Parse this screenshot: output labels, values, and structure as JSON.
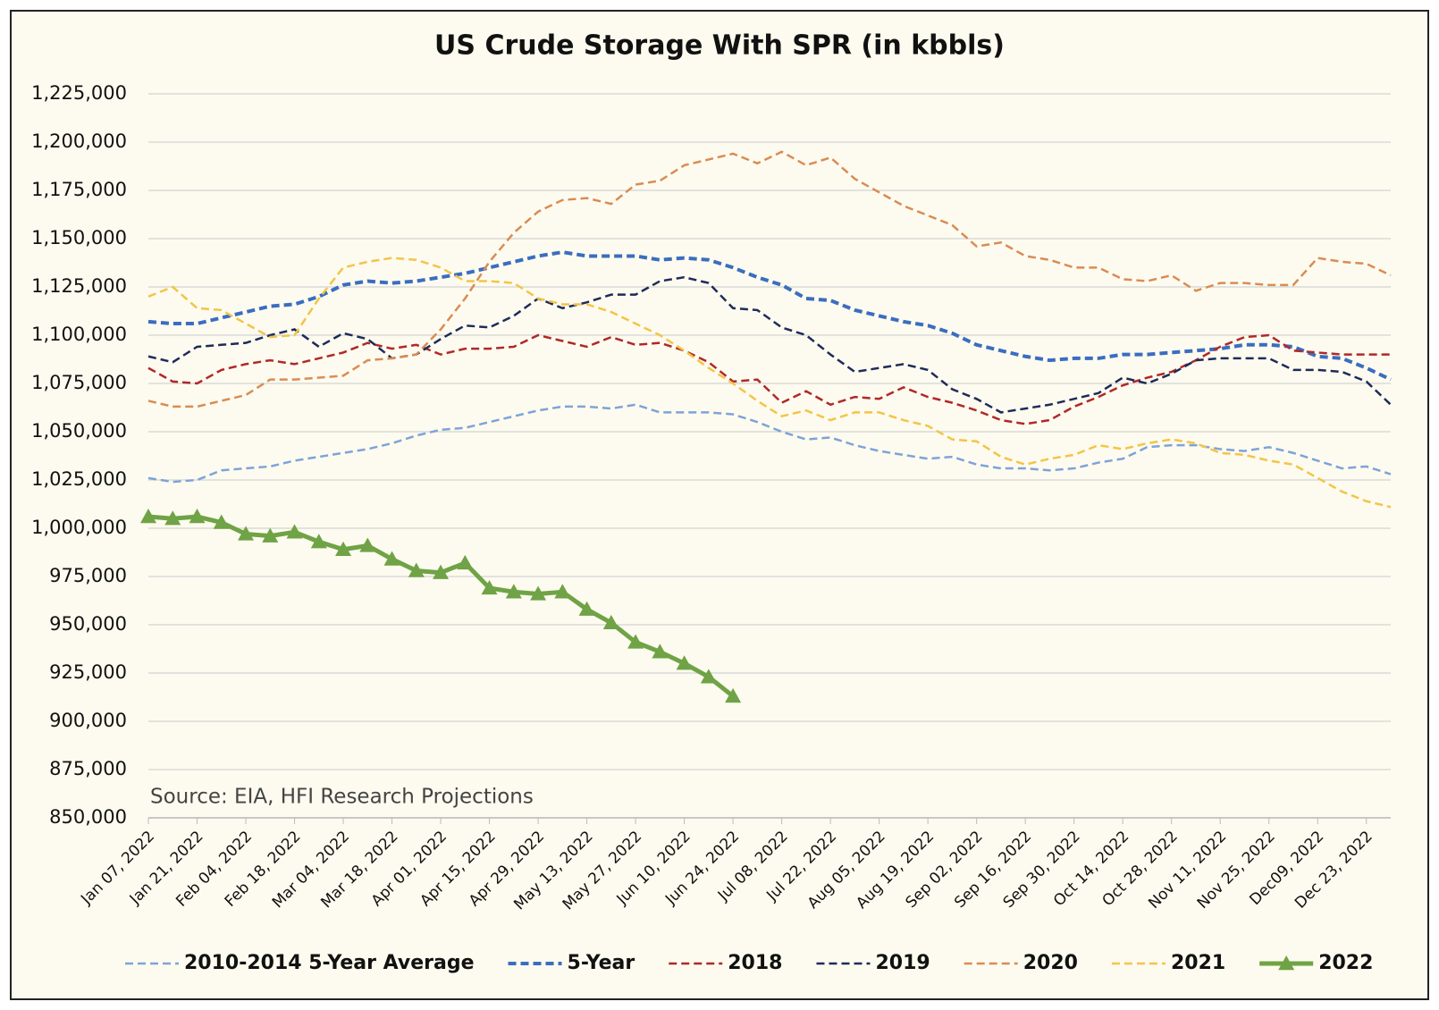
{
  "chart_data": {
    "type": "line",
    "title": "US Crude Storage With SPR (in kbbls)",
    "annotation": "Source: EIA, HFI Research Projections",
    "categories": [
      "Jan 07, 2022",
      null,
      "Jan 21, 2022",
      null,
      "Feb 04, 2022",
      null,
      "Feb 18, 2022",
      null,
      "Mar 04, 2022",
      null,
      "Mar 18, 2022",
      null,
      "Apr 01, 2022",
      null,
      "Apr 15, 2022",
      null,
      "Apr 29, 2022",
      null,
      "May 13, 2022",
      null,
      "May 27, 2022",
      null,
      "Jun 10, 2022",
      null,
      "Jun 24, 2022",
      null,
      "Jul 08, 2022",
      null,
      "Jul 22, 2022",
      null,
      "Aug 05, 2022",
      null,
      "Aug 19, 2022",
      null,
      "Sep 02, 2022",
      null,
      "Sep 16, 2022",
      null,
      "Sep 30, 2022",
      null,
      "Oct 14, 2022",
      null,
      "Oct 28, 2022",
      null,
      "Nov 11, 2022",
      null,
      "Nov 25, 2022",
      null,
      "Dec09, 2022",
      null,
      "Dec 23, 2022",
      null
    ],
    "ylim": [
      850000,
      1225000
    ],
    "yticks": [
      {
        "value": 850000,
        "label": "850,000"
      },
      {
        "value": 875000,
        "label": "875,000"
      },
      {
        "value": 900000,
        "label": "900,000"
      },
      {
        "value": 925000,
        "label": "925,000"
      },
      {
        "value": 950000,
        "label": "950,000"
      },
      {
        "value": 975000,
        "label": "975,000"
      },
      {
        "value": 1000000,
        "label": "1,000,000"
      },
      {
        "value": 1025000,
        "label": "1,025,000"
      },
      {
        "value": 1050000,
        "label": "1,050,000"
      },
      {
        "value": 1075000,
        "label": "1,075,000"
      },
      {
        "value": 1100000,
        "label": "1,100,000"
      },
      {
        "value": 1125000,
        "label": "1,125,000"
      },
      {
        "value": 1150000,
        "label": "1,150,000"
      },
      {
        "value": 1175000,
        "label": "1,175,000"
      },
      {
        "value": 1200000,
        "label": "1,200,000"
      },
      {
        "value": 1225000,
        "label": "1,225,000"
      }
    ],
    "grid": true,
    "legend": "bottom",
    "series": [
      {
        "name": "2010-2014 5-Year Average",
        "color": "#7ea3d8",
        "dashed": true,
        "width": 2.5,
        "values": [
          1026000,
          1024000,
          1025000,
          1030000,
          1031000,
          1032000,
          1035000,
          1037000,
          1039000,
          1041000,
          1044000,
          1048000,
          1051000,
          1052000,
          1055000,
          1058000,
          1061000,
          1063000,
          1063000,
          1062000,
          1064000,
          1060000,
          1060000,
          1060000,
          1059000,
          1055000,
          1050000,
          1046000,
          1047000,
          1043000,
          1040000,
          1038000,
          1036000,
          1037000,
          1033000,
          1031000,
          1031000,
          1030000,
          1031000,
          1034000,
          1036000,
          1042000,
          1043000,
          1043000,
          1041000,
          1040000,
          1042000,
          1039000,
          1035000,
          1031000,
          1032000,
          1028000
        ]
      },
      {
        "name": "5-Year",
        "color": "#3b6dc0",
        "dashed": true,
        "width": 4,
        "values": [
          1107000,
          1106000,
          1106000,
          1109000,
          1112000,
          1115000,
          1116000,
          1120000,
          1126000,
          1128000,
          1127000,
          1128000,
          1130000,
          1132000,
          1135000,
          1138000,
          1141000,
          1143000,
          1141000,
          1141000,
          1141000,
          1139000,
          1140000,
          1139000,
          1135000,
          1130000,
          1126000,
          1119000,
          1118000,
          1113000,
          1110000,
          1107000,
          1105000,
          1101000,
          1095000,
          1092000,
          1089000,
          1087000,
          1088000,
          1088000,
          1090000,
          1090000,
          1091000,
          1092000,
          1093000,
          1095000,
          1095000,
          1094000,
          1089000,
          1088000,
          1083000,
          1077000
        ]
      },
      {
        "name": "2018",
        "color": "#b02828",
        "dashed": true,
        "width": 2.5,
        "values": [
          1083000,
          1076000,
          1075000,
          1082000,
          1085000,
          1087000,
          1085000,
          1088000,
          1091000,
          1096000,
          1093000,
          1095000,
          1090000,
          1093000,
          1093000,
          1094000,
          1100000,
          1097000,
          1094000,
          1099000,
          1095000,
          1096000,
          1092000,
          1086000,
          1076000,
          1077000,
          1065000,
          1071000,
          1064000,
          1068000,
          1067000,
          1073000,
          1068000,
          1065000,
          1061000,
          1056000,
          1054000,
          1056000,
          1063000,
          1068000,
          1074000,
          1078000,
          1081000,
          1087000,
          1094000,
          1099000,
          1100000,
          1092000,
          1091000,
          1090000,
          1090000,
          1090000
        ]
      },
      {
        "name": "2019",
        "color": "#1e2b5a",
        "dashed": true,
        "width": 2.5,
        "values": [
          1089000,
          1086000,
          1094000,
          1095000,
          1096000,
          1100000,
          1103000,
          1094000,
          1101000,
          1098000,
          1088000,
          1090000,
          1098000,
          1105000,
          1104000,
          1110000,
          1119000,
          1114000,
          1117000,
          1121000,
          1121000,
          1128000,
          1130000,
          1127000,
          1114000,
          1113000,
          1104000,
          1100000,
          1090000,
          1081000,
          1083000,
          1085000,
          1082000,
          1072000,
          1067000,
          1060000,
          1062000,
          1064000,
          1067000,
          1070000,
          1078000,
          1075000,
          1080000,
          1087000,
          1088000,
          1088000,
          1088000,
          1082000,
          1082000,
          1081000,
          1076000,
          1064000
        ]
      },
      {
        "name": "2020",
        "color": "#d98c55",
        "dashed": true,
        "width": 2.5,
        "values": [
          1066000,
          1063000,
          1063000,
          1066000,
          1069000,
          1077000,
          1077000,
          1078000,
          1079000,
          1087000,
          1088000,
          1090000,
          1103000,
          1119000,
          1138000,
          1153000,
          1164000,
          1170000,
          1171000,
          1168000,
          1178000,
          1180000,
          1188000,
          1191000,
          1194000,
          1189000,
          1195000,
          1188000,
          1192000,
          1181000,
          1174000,
          1167000,
          1162000,
          1157000,
          1146000,
          1148000,
          1141000,
          1139000,
          1135000,
          1135000,
          1129000,
          1128000,
          1131000,
          1123000,
          1127000,
          1127000,
          1126000,
          1126000,
          1140000,
          1138000,
          1137000,
          1131000
        ]
      },
      {
        "name": "2021",
        "color": "#f2c548",
        "dashed": true,
        "width": 2.5,
        "values": [
          1120000,
          1125000,
          1114000,
          1113000,
          1106000,
          1099000,
          1100000,
          1119000,
          1135000,
          1138000,
          1140000,
          1139000,
          1135000,
          1128000,
          1128000,
          1127000,
          1119000,
          1116000,
          1116000,
          1112000,
          1106000,
          1100000,
          1092000,
          1083000,
          1075000,
          1066000,
          1058000,
          1061000,
          1056000,
          1060000,
          1060000,
          1056000,
          1053000,
          1046000,
          1045000,
          1037000,
          1033000,
          1036000,
          1038000,
          1043000,
          1041000,
          1044000,
          1046000,
          1044000,
          1039000,
          1038000,
          1035000,
          1033000,
          1026000,
          1019000,
          1014000,
          1011000
        ]
      },
      {
        "name": "2022",
        "color": "#6fa346",
        "dashed": false,
        "width": 5,
        "marker": "triangle",
        "values": [
          1006000,
          1005000,
          1006000,
          1003000,
          997000,
          996000,
          998000,
          993000,
          989000,
          991000,
          984000,
          978000,
          977000,
          982000,
          969000,
          967000,
          966000,
          967000,
          958000,
          951000,
          941000,
          936000,
          930000,
          923000,
          913000,
          null,
          null,
          null,
          null,
          null,
          null,
          null,
          null,
          null,
          null,
          null,
          null,
          null,
          null,
          null,
          null,
          null,
          null,
          null,
          null,
          null,
          null,
          null,
          null,
          null,
          null,
          null
        ]
      }
    ]
  }
}
